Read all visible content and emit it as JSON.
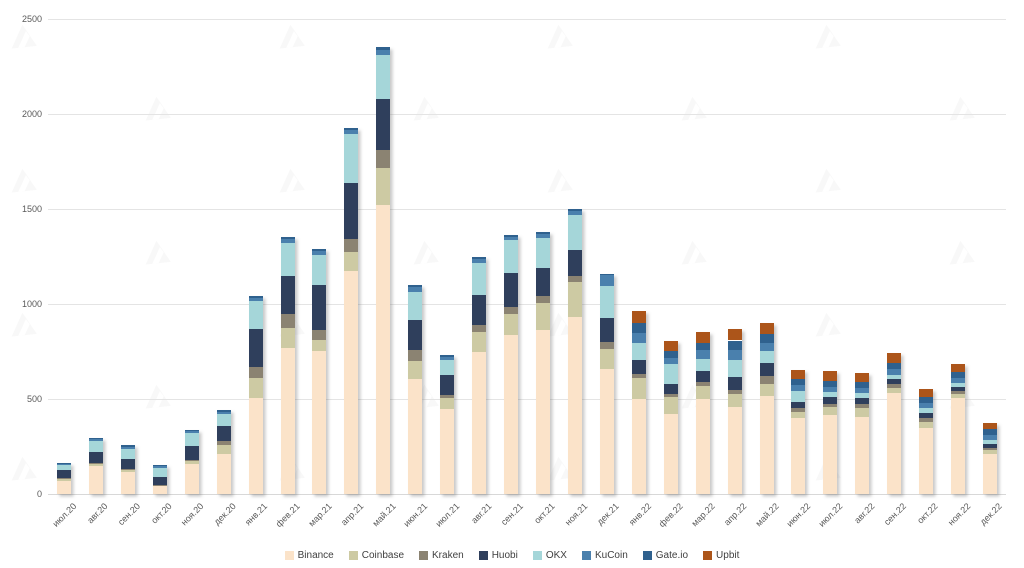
{
  "chart_data": {
    "type": "bar",
    "stacked": true,
    "grid": true,
    "legend_position": "bottom",
    "ylim": [
      0,
      2500
    ],
    "y_ticks": [
      0,
      500,
      1000,
      1500,
      2000,
      2500
    ],
    "categories": [
      "июл.20",
      "авг.20",
      "сен.20",
      "окт.20",
      "ноя.20",
      "дек.20",
      "янв.21",
      "фев.21",
      "мар.21",
      "апр.21",
      "май.21",
      "июн.21",
      "июл.21",
      "авг.21",
      "сен.21",
      "окт.21",
      "ноя.21",
      "дек.21",
      "янв.22",
      "фев.22",
      "мар.22",
      "апр.22",
      "май.22",
      "июн.22",
      "июл.22",
      "авг.22",
      "сен.22",
      "окт.22",
      "ноя.22",
      "дек.22"
    ],
    "series": [
      {
        "name": "Binance",
        "color": "#FBE3C9",
        "values": [
          70,
          145,
          115,
          40,
          160,
          210,
          505,
          770,
          755,
          1175,
          1520,
          605,
          450,
          750,
          835,
          865,
          930,
          660,
          500,
          420,
          500,
          458,
          515,
          398,
          415,
          405,
          530,
          345,
          505,
          210
        ]
      },
      {
        "name": "Coinbase",
        "color": "#CDCAA3",
        "values": [
          8,
          12,
          12,
          6,
          15,
          50,
          105,
          105,
          55,
          100,
          195,
          95,
          53,
          105,
          115,
          140,
          185,
          105,
          110,
          88,
          70,
          70,
          62,
          35,
          42,
          50,
          30,
          35,
          22,
          20
        ]
      },
      {
        "name": "Kraken",
        "color": "#8B8372",
        "values": [
          4,
          6,
          5,
          4,
          6,
          20,
          60,
          70,
          55,
          65,
          95,
          60,
          18,
          35,
          35,
          35,
          35,
          35,
          22,
          18,
          18,
          18,
          44,
          18,
          18,
          18,
          18,
          18,
          16,
          14
        ]
      },
      {
        "name": "Huobi",
        "color": "#2F3F5C",
        "values": [
          42,
          60,
          50,
          40,
          70,
          80,
          200,
          200,
          235,
          295,
          270,
          158,
          105,
          158,
          180,
          148,
          132,
          125,
          75,
          52,
          62,
          70,
          70,
          35,
          38,
          30,
          26,
          30,
          18,
          21
        ]
      },
      {
        "name": "OKX",
        "color": "#A5D6D9",
        "values": [
          28,
          55,
          55,
          48,
          68,
          62,
          145,
          175,
          160,
          260,
          230,
          145,
          80,
          170,
          170,
          158,
          188,
          172,
          90,
          105,
          62,
          88,
          62,
          55,
          22,
          27,
          23,
          23,
          21,
          18
        ]
      },
      {
        "name": "KuCoin",
        "color": "#4A80AD",
        "values": [
          6,
          10,
          12,
          10,
          12,
          12,
          18,
          20,
          20,
          22,
          28,
          25,
          15,
          18,
          18,
          20,
          18,
          55,
          50,
          35,
          44,
          52,
          40,
          34,
          28,
          27,
          30,
          27,
          27,
          27
        ]
      },
      {
        "name": "Gate.io",
        "color": "#2F618E",
        "values": [
          4,
          7,
          8,
          6,
          8,
          8,
          10,
          12,
          10,
          12,
          15,
          12,
          10,
          10,
          12,
          14,
          12,
          8,
          55,
          35,
          40,
          52,
          50,
          30,
          34,
          30,
          32,
          34,
          34,
          30
        ]
      },
      {
        "name": "Upbit",
        "color": "#AC551A",
        "values": [
          0,
          0,
          0,
          0,
          0,
          0,
          0,
          0,
          0,
          0,
          0,
          0,
          0,
          0,
          0,
          0,
          0,
          0,
          63,
          52,
          59,
          62,
          57,
          50,
          48,
          48,
          51,
          43,
          42,
          35
        ]
      }
    ]
  },
  "watermark": {
    "icon": "forklog-triangle-logo",
    "color": "#888888"
  }
}
